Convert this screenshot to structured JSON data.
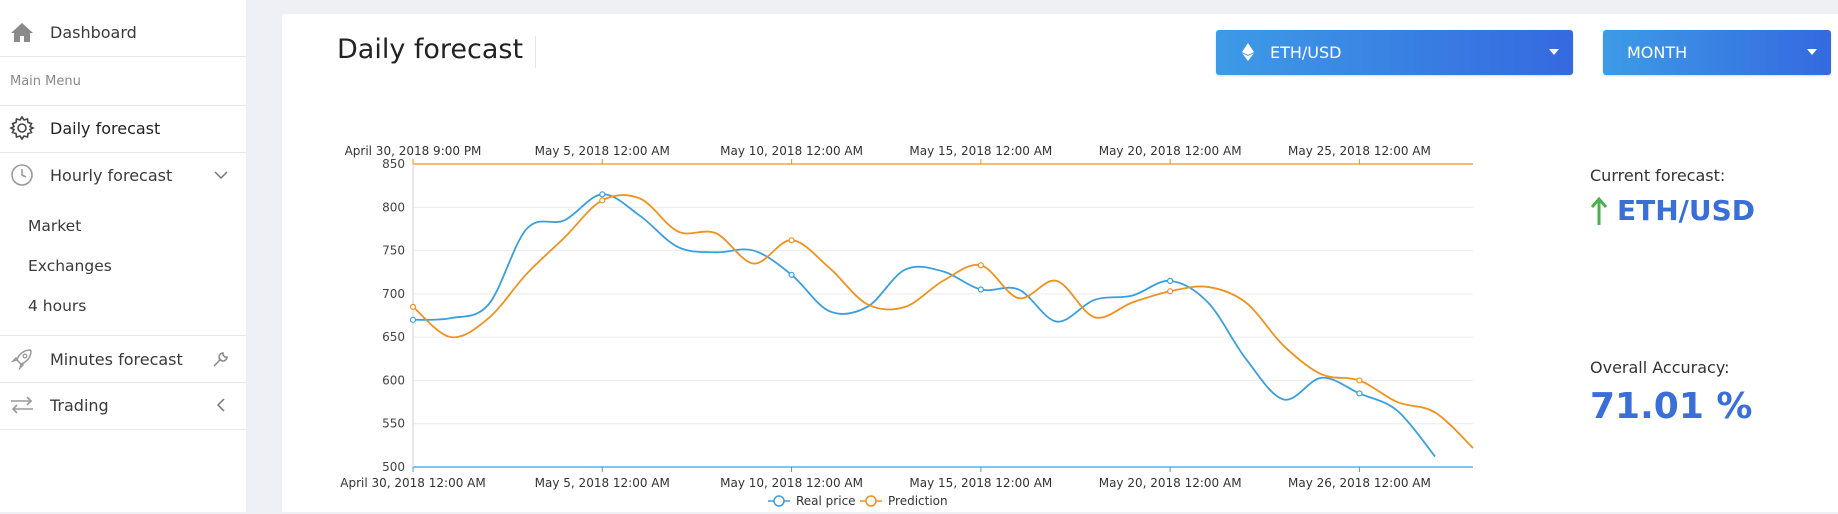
{
  "sidebar": {
    "items": [
      {
        "label": "Dashboard",
        "icon": "home-icon"
      },
      {
        "label": "Main Menu"
      },
      {
        "label": "Daily forecast",
        "icon": "gear-icon"
      },
      {
        "label": "Hourly forecast",
        "icon": "clock-icon"
      },
      {
        "label": "Market"
      },
      {
        "label": "Exchanges"
      },
      {
        "label": "4 hours"
      },
      {
        "label": "Minutes forecast",
        "icon": "rocket-icon"
      },
      {
        "label": "Trading",
        "icon": "transfer-icon"
      }
    ]
  },
  "main": {
    "title": "Daily forecast",
    "pair_dropdown": {
      "value": "ETH/USD",
      "icon": "ethereum-icon"
    },
    "period_dropdown": {
      "value": "MONTH"
    },
    "current_forecast_label": "Current forecast:",
    "current_forecast_value": "ETH/USD",
    "current_forecast_direction": "up",
    "accuracy_label": "Overall Accuracy:",
    "accuracy_value": "71.01 %"
  },
  "colors": {
    "accent_blue": "#3a6fd8",
    "real_price": "#3aa0dd",
    "prediction": "#f0921f",
    "up_arrow": "#4caf50"
  },
  "chart_data": {
    "type": "line",
    "ylim": [
      500,
      850
    ],
    "yticks": [
      500,
      550,
      600,
      650,
      700,
      750,
      800,
      850
    ],
    "top_axis_labels": [
      "April 30, 2018 9:00 PM",
      "May 5, 2018 12:00 AM",
      "May 10, 2018 12:00 AM",
      "May 15, 2018 12:00 AM",
      "May 20, 2018 12:00 AM",
      "May 25, 2018 12:00 AM"
    ],
    "bottom_axis_labels": [
      "April 30, 2018 12:00 AM",
      "May 5, 2018 12:00 AM",
      "May 10, 2018 12:00 AM",
      "May 15, 2018 12:00 AM",
      "May 20, 2018 12:00 AM",
      "May 26, 2018 12:00 AM"
    ],
    "x_days": 28,
    "series": [
      {
        "name": "Real price",
        "color": "#3aa0dd",
        "x": [
          0,
          1,
          2,
          3,
          4,
          5,
          6,
          7,
          8,
          9,
          10,
          11,
          12,
          13,
          14,
          15,
          16,
          17,
          18,
          19,
          20,
          21,
          22,
          23,
          24,
          25,
          26,
          27
        ],
        "values": [
          670,
          672,
          688,
          775,
          785,
          815,
          790,
          754,
          748,
          750,
          722,
          680,
          685,
          728,
          726,
          705,
          705,
          668,
          693,
          698,
          715,
          690,
          625,
          578,
          603,
          585,
          565,
          512
        ],
        "markers": [
          0,
          5,
          10,
          15,
          20,
          25
        ]
      },
      {
        "name": "Prediction",
        "color": "#f0921f",
        "x": [
          0,
          1,
          2,
          3,
          4,
          5,
          6,
          7,
          8,
          9,
          10,
          11,
          12,
          13,
          14,
          15,
          16,
          17,
          18,
          19,
          20,
          21,
          22,
          23,
          24,
          25,
          26,
          27,
          28
        ],
        "values": [
          685,
          650,
          672,
          723,
          765,
          808,
          810,
          772,
          770,
          735,
          762,
          730,
          688,
          685,
          715,
          733,
          695,
          715,
          673,
          690,
          703,
          708,
          690,
          640,
          607,
          600,
          575,
          563,
          522
        ],
        "markers": [
          0,
          5,
          10,
          15,
          20,
          25
        ]
      }
    ]
  }
}
